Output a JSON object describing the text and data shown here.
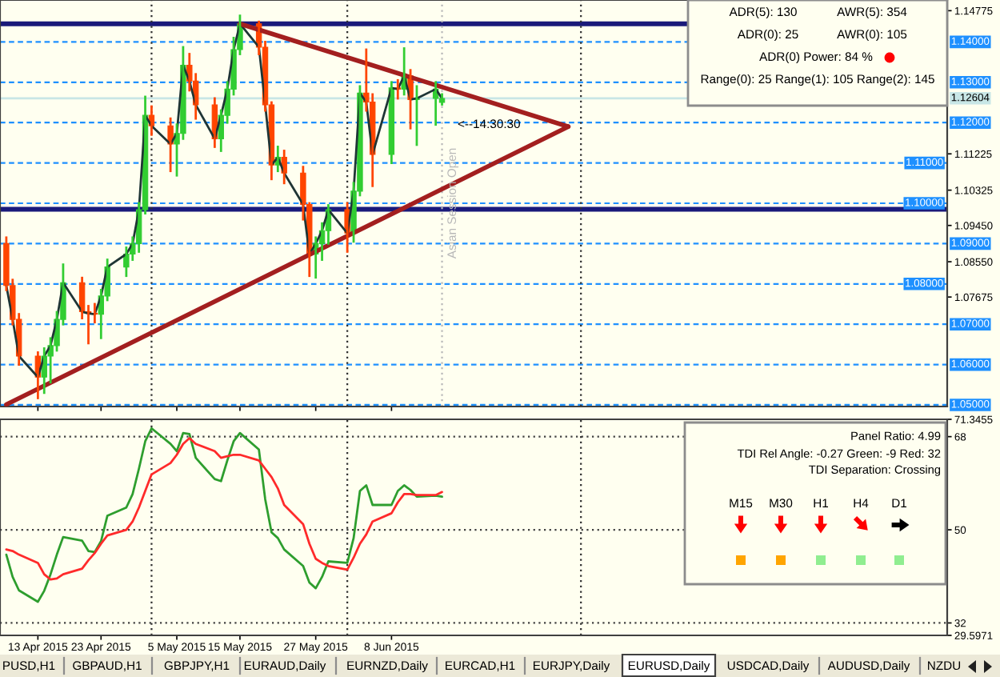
{
  "chart_data": [
    {
      "type": "candlestick",
      "x": [
        "2015-04-08",
        "2015-04-09",
        "2015-04-10",
        "2015-04-13",
        "2015-04-14",
        "2015-04-15",
        "2015-04-16",
        "2015-04-17",
        "2015-04-20",
        "2015-04-21",
        "2015-04-22",
        "2015-04-23",
        "2015-04-24",
        "2015-04-27",
        "2015-04-28",
        "2015-04-29",
        "2015-04-30",
        "2015-05-01",
        "2015-05-04",
        "2015-05-05",
        "2015-05-06",
        "2015-05-07",
        "2015-05-08",
        "2015-05-11",
        "2015-05-12",
        "2015-05-13",
        "2015-05-14",
        "2015-05-15",
        "2015-05-18",
        "2015-05-19",
        "2015-05-20",
        "2015-05-21",
        "2015-05-22",
        "2015-05-25",
        "2015-05-26",
        "2015-05-27",
        "2015-05-28",
        "2015-05-29",
        "2015-06-01",
        "2015-06-02",
        "2015-06-03",
        "2015-06-04",
        "2015-06-05",
        "2015-06-08",
        "2015-06-09",
        "2015-06-10",
        "2015-06-11",
        "2015-06-12",
        "2015-06-15",
        "2015-06-16"
      ],
      "ohlc": [
        [
          1.09,
          1.0915,
          1.0785,
          1.0796
        ],
        [
          1.0796,
          1.081,
          1.07,
          1.0712
        ],
        [
          1.0712,
          1.0725,
          1.06,
          1.0621
        ],
        [
          1.0621,
          1.063,
          1.0517,
          1.0569
        ],
        [
          1.0569,
          1.064,
          1.053,
          1.0621
        ],
        [
          1.0621,
          1.0665,
          1.0556,
          1.0647
        ],
        [
          1.0647,
          1.073,
          1.0635,
          1.0712
        ],
        [
          1.0712,
          1.0848,
          1.07,
          1.0803
        ],
        [
          1.0803,
          1.0815,
          1.0715,
          1.0731
        ],
        [
          1.0731,
          1.0745,
          1.0653,
          1.0727
        ],
        [
          1.0727,
          1.075,
          1.0705,
          1.0725
        ],
        [
          1.0725,
          1.0785,
          1.0666,
          1.077
        ],
        [
          1.077,
          1.086,
          1.076,
          1.0842
        ],
        [
          1.0842,
          1.089,
          1.082,
          1.0874
        ],
        [
          1.0874,
          1.0915,
          1.086,
          1.09
        ],
        [
          1.09,
          1.1,
          1.088,
          1.0984
        ],
        [
          1.0984,
          1.1264,
          1.0975,
          1.1218
        ],
        [
          1.1218,
          1.124,
          1.117,
          1.1192
        ],
        [
          1.1192,
          1.121,
          1.108,
          1.1147
        ],
        [
          1.1147,
          1.1195,
          1.1069,
          1.1173
        ],
        [
          1.1173,
          1.1387,
          1.116,
          1.1342
        ],
        [
          1.1342,
          1.137,
          1.128,
          1.1303
        ],
        [
          1.1303,
          1.132,
          1.121,
          1.1244
        ],
        [
          1.1244,
          1.126,
          1.114,
          1.116
        ],
        [
          1.116,
          1.123,
          1.113,
          1.1218
        ],
        [
          1.1218,
          1.13,
          1.12,
          1.1283
        ],
        [
          1.1283,
          1.141,
          1.127,
          1.1381
        ],
        [
          1.1381,
          1.1465,
          1.137,
          1.1445
        ],
        [
          1.1445,
          1.145,
          1.137,
          1.1387
        ],
        [
          1.1387,
          1.14,
          1.123,
          1.1244
        ],
        [
          1.1244,
          1.125,
          1.106,
          1.1095
        ],
        [
          1.1095,
          1.114,
          1.108,
          1.1114
        ],
        [
          1.1114,
          1.113,
          1.105,
          1.1075
        ],
        [
          1.1075,
          1.109,
          1.096,
          1.0997
        ],
        [
          1.0997,
          1.1,
          1.082,
          1.0874
        ],
        [
          1.0874,
          1.0915,
          1.0816,
          1.09
        ],
        [
          1.09,
          1.095,
          1.086,
          1.0932
        ],
        [
          1.0932,
          1.0995,
          1.09,
          1.0984
        ],
        [
          1.0984,
          1.1,
          1.088,
          1.0926
        ],
        [
          1.0926,
          1.105,
          1.0905,
          1.103
        ],
        [
          1.103,
          1.129,
          1.102,
          1.1273
        ],
        [
          1.1273,
          1.1381,
          1.123,
          1.1251
        ],
        [
          1.1251,
          1.127,
          1.1043,
          1.1121
        ],
        [
          1.1121,
          1.13,
          1.11,
          1.1286
        ],
        [
          1.1286,
          1.1305,
          1.126,
          1.1283
        ],
        [
          1.1283,
          1.1384,
          1.127,
          1.1316
        ],
        [
          1.1316,
          1.133,
          1.1186,
          1.1257
        ],
        [
          1.1257,
          1.129,
          1.1145,
          1.126
        ],
        [
          1.126,
          1.13,
          1.1195,
          1.1283
        ],
        [
          1.125,
          1.127,
          1.1245,
          1.126
        ]
      ],
      "colors": [
        "#ff4500",
        "#ff4500",
        "#ff4500",
        "#ff4500",
        "#32cd32",
        "#32cd32",
        "#32cd32",
        "#32cd32",
        "#ff4500",
        "#ff4500",
        "#ff4500",
        "#32cd32",
        "#32cd32",
        "#32cd32",
        "#32cd32",
        "#32cd32",
        "#32cd32",
        "#ff4500",
        "#ff4500",
        "#32cd32",
        "#32cd32",
        "#ff4500",
        "#ff4500",
        "#ff4500",
        "#32cd32",
        "#32cd32",
        "#32cd32",
        "#32cd32",
        "#ff4500",
        "#ff4500",
        "#ff4500",
        "#32cd32",
        "#ff4500",
        "#ff4500",
        "#ff4500",
        "#32cd32",
        "#32cd32",
        "#32cd32",
        "#ff4500",
        "#32cd32",
        "#32cd32",
        "#ff4500",
        "#ff4500",
        "#32cd32",
        "#ff4500",
        "#32cd32",
        "#ff4500",
        "#32cd32",
        "#32cd32",
        "#32cd32"
      ],
      "series": [
        {
          "type": "line",
          "color": "#1f3535",
          "values": [
            1.0796,
            1.0712,
            1.0621,
            1.0569,
            1.0621,
            1.0647,
            1.0712,
            1.0803,
            1.0731,
            1.0727,
            1.0725,
            1.077,
            1.0842,
            1.0874,
            1.09,
            1.0984,
            1.1218,
            1.1192,
            1.1147,
            1.1173,
            1.1342,
            1.1303,
            1.1244,
            1.116,
            1.1218,
            1.1283,
            1.1381,
            1.1445,
            1.1387,
            1.1244,
            1.1095,
            1.1114,
            1.1075,
            1.0997,
            1.0874,
            1.09,
            1.0932,
            1.0984,
            1.0926,
            1.103,
            1.1273,
            1.1251,
            1.1121,
            1.1286,
            1.1283,
            1.1316,
            1.1257,
            1.126,
            1.1283,
            1.126
          ]
        },
        {
          "type": "line",
          "color": "#a31f1f",
          "x": [
            "2015-05-15",
            "2015-07-06"
          ],
          "values": [
            1.1445,
            1.119
          ]
        },
        {
          "type": "line",
          "color": "#a31f1f",
          "x": [
            "2015-04-08",
            "2015-07-06"
          ],
          "values": [
            1.0501,
            1.119
          ]
        }
      ],
      "xlim": [
        "2015-04-07",
        "2015-09-04"
      ],
      "xticks": [
        {
          "value": "2015-04-13",
          "label": null
        },
        {
          "value": "2015-04-23",
          "label": null
        },
        {
          "value": "2015-05-05",
          "label": null
        },
        {
          "value": "2015-05-15",
          "label": null
        },
        {
          "value": "2015-05-27",
          "label": null
        },
        {
          "value": "2015-06-08",
          "label": null
        }
      ],
      "ylim": [
        1.0496,
        1.1504
      ],
      "yticks": [
        1.14775,
        1.11225,
        1.10325,
        {
          "value": 1.0945,
          "label": "1.09450"
        },
        {
          "value": 1.0855,
          "label": "1.08550"
        },
        1.07675
      ],
      "tick_labels": "y",
      "ref_lines": [
        {
          "axis": "y",
          "value": 1.14,
          "label": "1.14000",
          "color": "#1e90ff",
          "line_style": "dashed"
        },
        {
          "axis": "y",
          "value": 1.13,
          "label": "1.13000",
          "color": "#1e90ff",
          "line_style": "dashed"
        },
        {
          "axis": "y",
          "value": 1.12,
          "label": "1.12000",
          "color": "#1e90ff",
          "line_style": "dashed"
        },
        {
          "axis": "y",
          "value": 1.11,
          "label": "1.11000",
          "color": "#1e90ff",
          "line_style": "dashed"
        },
        {
          "axis": "y",
          "value": 1.1,
          "label": "1.10000",
          "color": "#1e90ff",
          "line_style": "dashed"
        },
        {
          "axis": "y",
          "value": 1.09,
          "label": "1.09000",
          "color": "#1e90ff",
          "line_style": "dashed"
        },
        {
          "axis": "y",
          "value": 1.08,
          "label": "1.08000",
          "color": "#1e90ff",
          "line_style": "dashed"
        },
        {
          "axis": "y",
          "value": 1.07,
          "label": "1.07000",
          "color": "#1e90ff",
          "line_style": "dashed"
        },
        {
          "axis": "y",
          "value": 1.06,
          "label": "1.06000",
          "color": "#1e90ff",
          "line_style": "dashed"
        },
        {
          "axis": "y",
          "value": 1.05,
          "label": "1.05000",
          "color": "#1e90ff",
          "line_style": "dashed"
        },
        {
          "axis": "y",
          "value": 1.1445,
          "color": "#1a1a7a",
          "line_style": "solid"
        },
        {
          "axis": "y",
          "value": 1.0985,
          "color": "#1a1a7a",
          "line_style": "solid"
        },
        {
          "axis": "y",
          "value": 1.12604,
          "label": "1.12604",
          "color": "#c8e6e6",
          "line_style": "solid"
        },
        {
          "axis": "x",
          "value": "2015-05-01",
          "color": "#303030",
          "line_style": "dotted"
        },
        {
          "axis": "x",
          "value": "2015-06-01",
          "color": "#303030",
          "line_style": "dotted"
        },
        {
          "axis": "x",
          "value": "2015-07-08",
          "color": "#303030",
          "line_style": "dotted"
        },
        {
          "axis": "x",
          "value": "2015-06-16",
          "label": "Asian Session Open",
          "color": "#b8b8b8",
          "line_style": "dotted"
        }
      ],
      "annotations": [
        "ADR(5): 130",
        "AWR(5): 354",
        "ADR(0): 25",
        "AWR(0): 105",
        "ADR(0) Power: 84 %",
        "Range(0): 25 Range(1): 105 Range(2): 145",
        "<--14:30:30"
      ]
    },
    {
      "type": "line",
      "x": [
        "2015-04-08",
        "2015-04-09",
        "2015-04-10",
        "2015-04-13",
        "2015-04-14",
        "2015-04-15",
        "2015-04-16",
        "2015-04-17",
        "2015-04-20",
        "2015-04-21",
        "2015-04-22",
        "2015-04-23",
        "2015-04-24",
        "2015-04-27",
        "2015-04-28",
        "2015-04-29",
        "2015-04-30",
        "2015-05-01",
        "2015-05-04",
        "2015-05-05",
        "2015-05-06",
        "2015-05-07",
        "2015-05-08",
        "2015-05-11",
        "2015-05-12",
        "2015-05-13",
        "2015-05-14",
        "2015-05-15",
        "2015-05-18",
        "2015-05-19",
        "2015-05-20",
        "2015-05-21",
        "2015-05-22",
        "2015-05-25",
        "2015-05-26",
        "2015-05-27",
        "2015-05-28",
        "2015-05-29",
        "2015-06-01",
        "2015-06-02",
        "2015-06-03",
        "2015-06-04",
        "2015-06-05",
        "2015-06-08",
        "2015-06-09",
        "2015-06-10",
        "2015-06-11",
        "2015-06-12",
        "2015-06-15",
        "2015-06-16"
      ],
      "series": [
        {
          "color": "#2e9e2e",
          "values": [
            45.2,
            40.9,
            38.3,
            36.1,
            38.2,
            41.4,
            45.2,
            48.6,
            47.9,
            45.9,
            45.7,
            47.8,
            52.7,
            54.3,
            56.9,
            61.8,
            67.1,
            69.6,
            66.6,
            65.2,
            68.7,
            68.5,
            63.9,
            59.8,
            59.4,
            63.4,
            67.1,
            68.7,
            65.5,
            55.9,
            49.5,
            48.4,
            46.2,
            43.0,
            39.8,
            38.7,
            40.9,
            43.9,
            43.6,
            48.4,
            57.5,
            58.6,
            54.8,
            54.8,
            57.5,
            58.6,
            57.7,
            56.4,
            56.6,
            56.4
          ]
        },
        {
          "color": "#ff2a2a",
          "values": [
            46.2,
            45.9,
            45.2,
            43.6,
            41.4,
            40.4,
            40.6,
            41.4,
            42.5,
            44.1,
            45.5,
            47.3,
            48.9,
            50.0,
            51.6,
            54.3,
            57.5,
            60.7,
            62.9,
            64.5,
            66.6,
            67.7,
            66.6,
            65.2,
            63.9,
            64.2,
            64.5,
            64.5,
            63.4,
            61.8,
            60.2,
            58.0,
            54.8,
            51.1,
            47.3,
            44.4,
            43.6,
            43.0,
            42.3,
            44.6,
            47.3,
            49.1,
            51.6,
            53.2,
            55.3,
            56.9,
            56.9,
            56.7,
            56.7,
            57.3
          ]
        }
      ],
      "xlim": [
        "2015-04-07",
        "2015-09-04"
      ],
      "xticks": [
        {
          "value": "2015-04-13",
          "label": "13 Apr 2015"
        },
        {
          "value": "2015-04-23",
          "label": "23 Apr 2015"
        },
        {
          "value": "2015-05-05",
          "label": "5 May 2015"
        },
        {
          "value": "2015-05-15",
          "label": "15 May 2015"
        },
        {
          "value": "2015-05-27",
          "label": "27 May 2015"
        },
        {
          "value": "2015-06-08",
          "label": "8 Jun 2015"
        }
      ],
      "ylim": [
        29.5971,
        71.3455
      ],
      "yticks": [
        71.3455,
        68,
        50,
        32,
        29.5971
      ],
      "ref_lines": [
        {
          "axis": "y",
          "value": 68,
          "color": "#404040",
          "line_style": "dotted"
        },
        {
          "axis": "y",
          "value": 50,
          "color": "#404040",
          "line_style": "dotted"
        },
        {
          "axis": "y",
          "value": 32,
          "color": "#404040",
          "line_style": "dotted"
        },
        {
          "axis": "x",
          "value": "2015-05-01",
          "color": "#303030",
          "line_style": "dotted"
        },
        {
          "axis": "x",
          "value": "2015-06-01",
          "color": "#303030",
          "line_style": "dotted"
        },
        {
          "axis": "x",
          "value": "2015-07-08",
          "color": "#303030",
          "line_style": "dotted"
        }
      ],
      "annotations": [
        "Panel Ratio: 4.99",
        "TDI Rel Angle: -0.27 Green: -9 Red: 32",
        "TDI Separation: Crossing",
        "M15",
        "M30",
        "H1",
        "H4",
        "D1",
        "PUSD,H1",
        "GBPAUD,H1",
        "GBPJPY,H1",
        "EURAUD,Daily",
        "EURNZD,Daily",
        "EURCAD,H1",
        "EURJPY,Daily",
        "EURUSD,Daily",
        "USDCAD,Daily",
        "AUDUSD,Daily",
        "NZDU"
      ]
    }
  ]
}
